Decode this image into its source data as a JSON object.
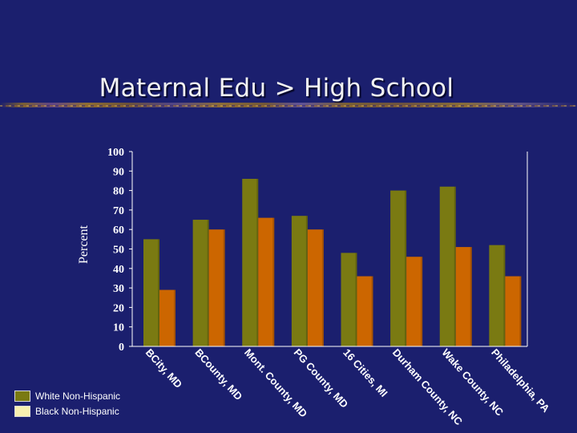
{
  "slide": {
    "title": "Maternal Edu > High School"
  },
  "colors": {
    "background": "#1b1f6e",
    "white_bar": "#7a7a12",
    "black_bar": "#cc6600",
    "axis": "#ffffff"
  },
  "chart_data": {
    "type": "bar",
    "title": "",
    "xlabel": "",
    "ylabel": "Percent",
    "ylim": [
      0,
      100
    ],
    "yticks": [
      "0",
      "10",
      "20",
      "30",
      "40",
      "50",
      "60",
      "70",
      "80",
      "90",
      "100"
    ],
    "categories": [
      "BCity, MD",
      "BCounty, MD",
      "Mont. County, MD",
      "PG County, MD",
      "16 Cities, MI",
      "Durham County, NC",
      "Wake County, NC",
      "Philadelphia, PA"
    ],
    "series": [
      {
        "name": "White Non-Hispanic",
        "color": "#7a7a12",
        "values": [
          55,
          65,
          86,
          67,
          48,
          80,
          82,
          52
        ]
      },
      {
        "name": "Black Non-Hispanic",
        "color": "#cc6600",
        "values": [
          29,
          60,
          66,
          60,
          36,
          46,
          51,
          36
        ]
      }
    ],
    "legend_position": "bottom-left",
    "grid": false
  }
}
